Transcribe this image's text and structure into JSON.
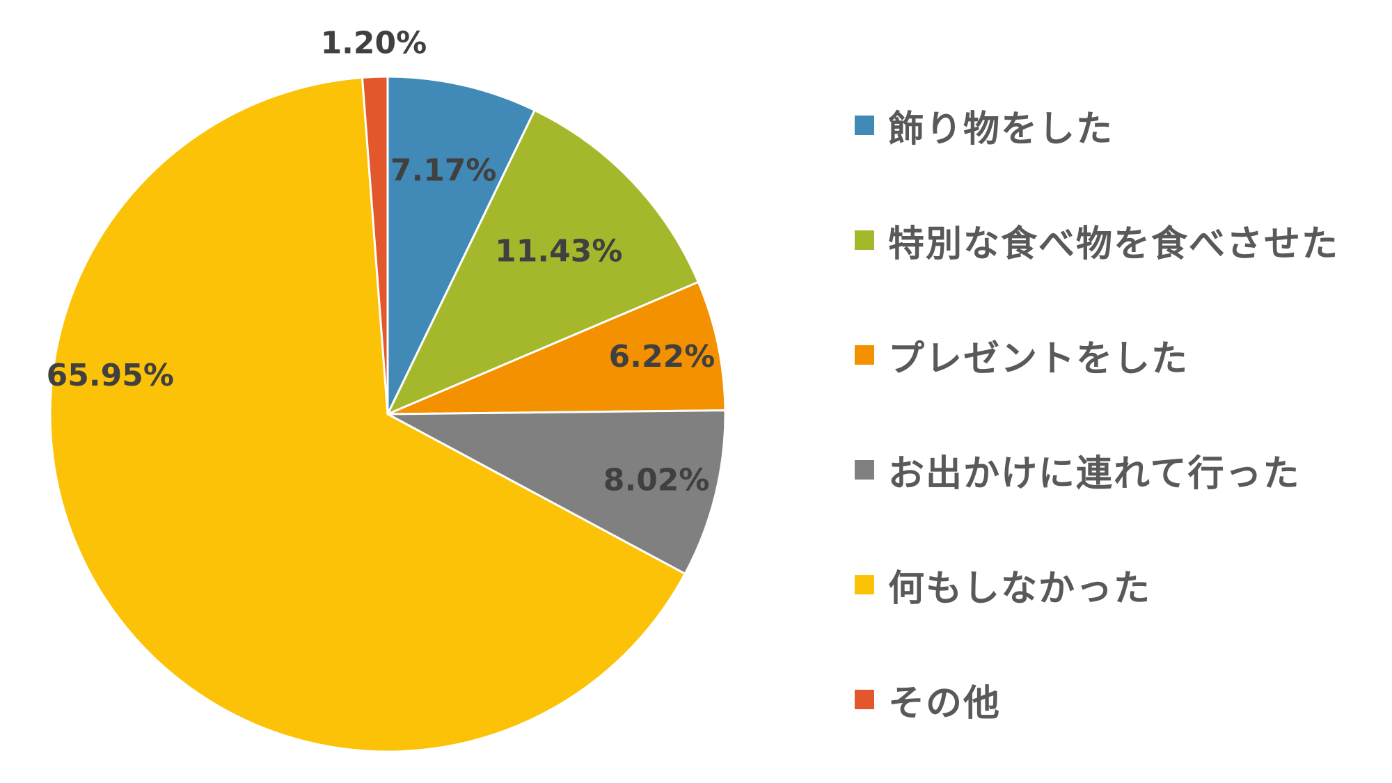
{
  "chart_data": {
    "type": "pie",
    "categories": [
      "飾り物をした",
      "特別な食べ物を食べさせた",
      "プレゼントをした",
      "お出かけに連れて行った",
      "何もしなかった",
      "その他"
    ],
    "values": [
      7.17,
      11.43,
      6.22,
      8.02,
      65.95,
      1.2
    ],
    "labels": [
      "7.17%",
      "11.43%",
      "6.22%",
      "8.02%",
      "65.95%",
      "1.20%"
    ],
    "colors": [
      "#4189B6",
      "#A5B82B",
      "#F39100",
      "#808080",
      "#FBC207",
      "#E2572B"
    ],
    "legend_position": "right",
    "start_angle": "12 o'clock",
    "direction": "clockwise"
  }
}
